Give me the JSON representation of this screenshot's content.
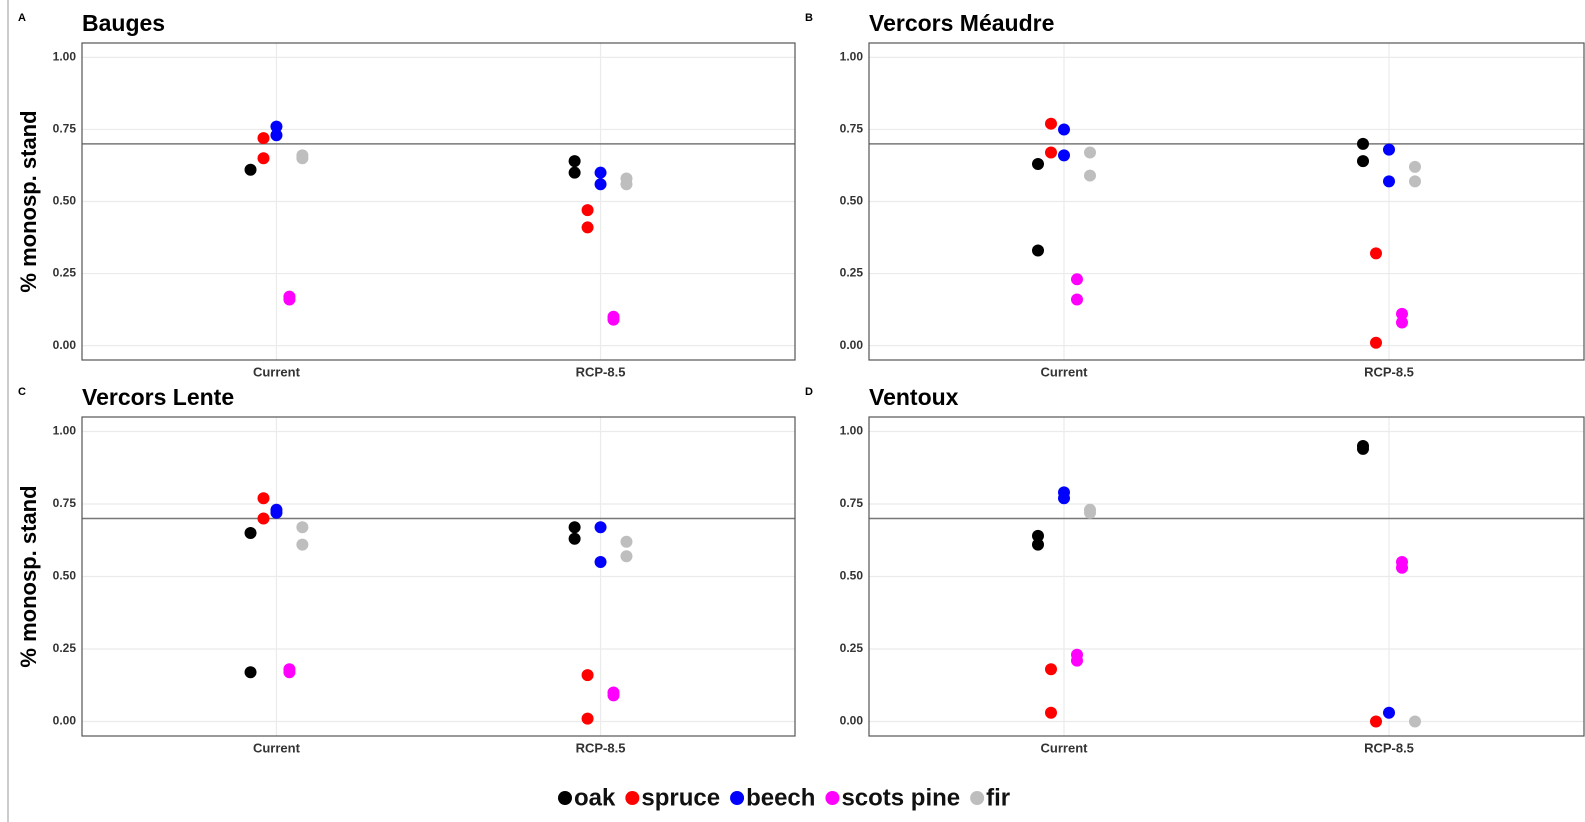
{
  "legend": [
    {
      "name": "oak",
      "color": "#000000"
    },
    {
      "name": "spruce",
      "color": "#ff0000"
    },
    {
      "name": "beech",
      "color": "#0000ff"
    },
    {
      "name": "scots pine",
      "color": "#ff00ff"
    },
    {
      "name": "fir",
      "color": "#bebebe"
    }
  ],
  "chart_data": [
    {
      "type": "scatter",
      "label": "A",
      "title": "Bauges",
      "ylabel": "% monosp. stand",
      "categories": [
        "Current",
        "RCP-8.5"
      ],
      "ylim": [
        -0.05,
        1.05
      ],
      "hline": 0.7,
      "grid": true,
      "yticks": [
        {
          "value": 0,
          "label": "0.00"
        },
        {
          "value": 0.25,
          "label": "0.25"
        },
        {
          "value": 0.5,
          "label": "0.50"
        },
        {
          "value": 0.75,
          "label": "0.75"
        },
        {
          "value": 1,
          "label": "1.00"
        }
      ],
      "series": [
        {
          "values": [
            [
              0.61
            ],
            [
              0.64,
              0.6
            ]
          ]
        },
        {
          "values": [
            [
              0.72,
              0.65
            ],
            [
              0.47,
              0.41
            ]
          ]
        },
        {
          "values": [
            [
              0.76,
              0.73
            ],
            [
              0.6,
              0.56
            ]
          ]
        },
        {
          "values": [
            [
              0.17,
              0.16
            ],
            [
              0.1,
              0.09
            ]
          ]
        },
        {
          "values": [
            [
              0.66,
              0.65
            ],
            [
              0.58,
              0.56
            ]
          ]
        }
      ]
    },
    {
      "type": "scatter",
      "label": "B",
      "title": "Vercors Méaudre",
      "categories": [
        "Current",
        "RCP-8.5"
      ],
      "ylim": [
        -0.05,
        1.05
      ],
      "hline": 0.7,
      "grid": true,
      "yticks": [
        {
          "value": 0,
          "label": "0.00"
        },
        {
          "value": 0.25,
          "label": "0.25"
        },
        {
          "value": 0.5,
          "label": "0.50"
        },
        {
          "value": 0.75,
          "label": "0.75"
        },
        {
          "value": 1,
          "label": "1.00"
        }
      ],
      "series": [
        {
          "values": [
            [
              0.63,
              0.33
            ],
            [
              0.7,
              0.64
            ]
          ]
        },
        {
          "values": [
            [
              0.77,
              0.67
            ],
            [
              0.32,
              0.01
            ]
          ]
        },
        {
          "values": [
            [
              0.75,
              0.66
            ],
            [
              0.68,
              0.57
            ]
          ]
        },
        {
          "values": [
            [
              0.23,
              0.16
            ],
            [
              0.11,
              0.08
            ]
          ]
        },
        {
          "values": [
            [
              0.67,
              0.59
            ],
            [
              0.62,
              0.57
            ]
          ]
        }
      ]
    },
    {
      "type": "scatter",
      "label": "C",
      "title": "Vercors Lente",
      "ylabel": "% monosp. stand",
      "categories": [
        "Current",
        "RCP-8.5"
      ],
      "ylim": [
        -0.05,
        1.05
      ],
      "hline": 0.7,
      "grid": true,
      "yticks": [
        {
          "value": 0,
          "label": "0.00"
        },
        {
          "value": 0.25,
          "label": "0.25"
        },
        {
          "value": 0.5,
          "label": "0.50"
        },
        {
          "value": 0.75,
          "label": "0.75"
        },
        {
          "value": 1,
          "label": "1.00"
        }
      ],
      "series": [
        {
          "values": [
            [
              0.65,
              0.17
            ],
            [
              0.67,
              0.63
            ]
          ]
        },
        {
          "values": [
            [
              0.77,
              0.7
            ],
            [
              0.16,
              0.01
            ]
          ]
        },
        {
          "values": [
            [
              0.73,
              0.72
            ],
            [
              0.67,
              0.55
            ]
          ]
        },
        {
          "values": [
            [
              0.18,
              0.17
            ],
            [
              0.1,
              0.09
            ]
          ]
        },
        {
          "values": [
            [
              0.67,
              0.61
            ],
            [
              0.62,
              0.57
            ]
          ]
        }
      ]
    },
    {
      "type": "scatter",
      "label": "D",
      "title": "Ventoux",
      "categories": [
        "Current",
        "RCP-8.5"
      ],
      "ylim": [
        -0.05,
        1.05
      ],
      "hline": 0.7,
      "grid": true,
      "yticks": [
        {
          "value": 0,
          "label": "0.00"
        },
        {
          "value": 0.25,
          "label": "0.25"
        },
        {
          "value": 0.5,
          "label": "0.50"
        },
        {
          "value": 0.75,
          "label": "0.75"
        },
        {
          "value": 1,
          "label": "1.00"
        }
      ],
      "series": [
        {
          "values": [
            [
              0.64,
              0.61
            ],
            [
              0.95,
              0.94
            ]
          ]
        },
        {
          "values": [
            [
              0.18,
              0.03
            ],
            [
              0
            ]
          ]
        },
        {
          "values": [
            [
              0.79,
              0.77
            ],
            [
              0.03
            ]
          ]
        },
        {
          "values": [
            [
              0.23,
              0.21
            ],
            [
              0.55,
              0.53
            ]
          ]
        },
        {
          "values": [
            [
              0.73,
              0.72
            ],
            [
              0
            ]
          ]
        }
      ]
    }
  ]
}
